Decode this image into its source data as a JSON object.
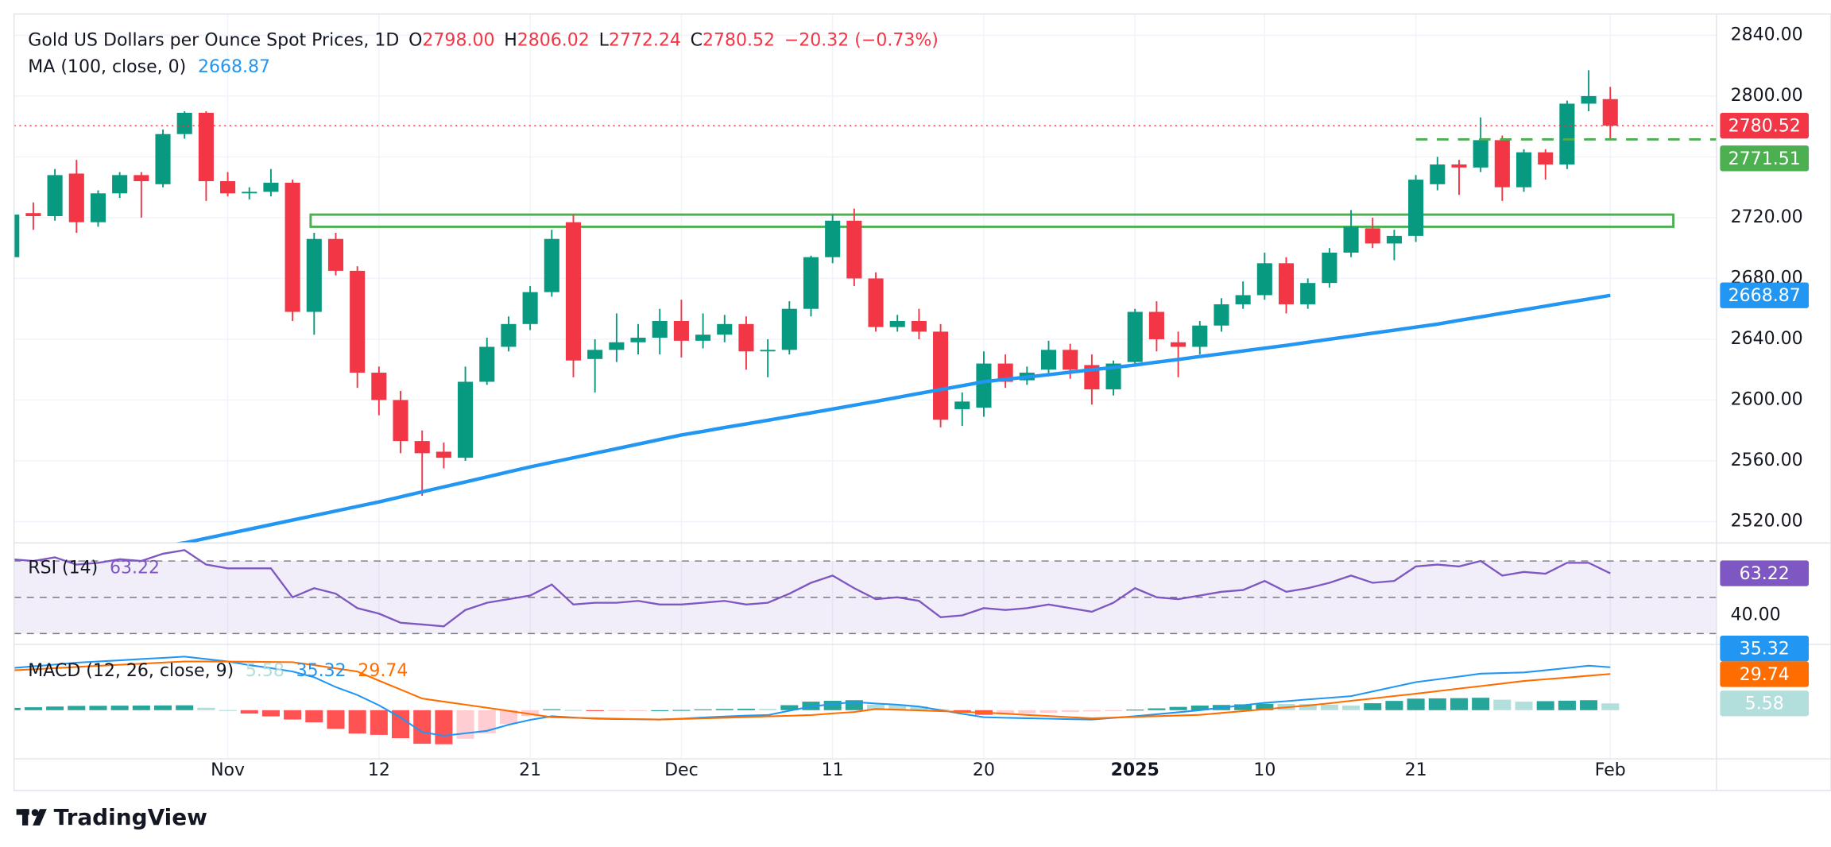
{
  "chart_data": [
    {
      "type": "candlestick",
      "title": "Gold US Dollars per Ounce Spot Prices, 1D",
      "ohlc_legend": [
        {
          "key": "O",
          "value": "2798.00"
        },
        {
          "key": "H",
          "value": "2806.02"
        },
        {
          "key": "L",
          "value": "2772.24"
        },
        {
          "key": "C",
          "value": "2780.52"
        }
      ],
      "change": "−20.32 (−0.73%)",
      "categories": [
        null,
        null,
        null,
        null,
        null,
        null,
        null,
        null,
        null,
        null,
        "Nov",
        null,
        null,
        null,
        null,
        null,
        null,
        "12",
        null,
        null,
        null,
        null,
        null,
        null,
        "21",
        null,
        null,
        null,
        null,
        null,
        null,
        "Dec",
        null,
        null,
        null,
        null,
        null,
        null,
        "11",
        null,
        null,
        null,
        null,
        null,
        null,
        "20",
        null,
        null,
        null,
        null,
        null,
        null,
        "2025",
        null,
        null,
        null,
        null,
        null,
        "10",
        null,
        null,
        null,
        null,
        null,
        null,
        "21",
        null,
        null,
        null,
        null,
        null,
        null,
        null,
        null,
        "Feb"
      ],
      "open": [
        2694,
        2723,
        2721,
        2749,
        2717,
        2736,
        2748,
        2742,
        2775,
        2789,
        2744,
        2736,
        2737,
        2743,
        2658,
        2706,
        2685,
        2618,
        2600,
        2573,
        2566,
        2562,
        2612,
        2635,
        2650,
        2671,
        2717,
        2627,
        2633,
        2638,
        2641,
        2652,
        2639,
        2643,
        2650,
        2632,
        2633,
        2660,
        2694,
        2718,
        2680,
        2648,
        2652,
        2645,
        2594,
        2595,
        2624,
        2613,
        2620,
        2633,
        2623,
        2607,
        2625,
        2658,
        2638,
        2635,
        2649,
        2663,
        2669,
        2690,
        2663,
        2677,
        2697,
        2713,
        2703,
        2708,
        2742,
        2755,
        2753,
        2771,
        2740,
        2763,
        2755,
        2795,
        2798
      ],
      "high": [
        2726,
        2730,
        2752,
        2758,
        2738,
        2750,
        2750,
        2778,
        2790,
        2790,
        2750,
        2740,
        2752,
        2745,
        2710,
        2710,
        2688,
        2622,
        2606,
        2580,
        2572,
        2622,
        2641,
        2655,
        2675,
        2712,
        2722,
        2640,
        2657,
        2650,
        2660,
        2666,
        2657,
        2656,
        2655,
        2640,
        2665,
        2695,
        2722,
        2726,
        2684,
        2656,
        2660,
        2650,
        2605,
        2632,
        2630,
        2622,
        2639,
        2637,
        2630,
        2626,
        2660,
        2665,
        2645,
        2652,
        2667,
        2678,
        2697,
        2694,
        2680,
        2700,
        2725,
        2720,
        2712,
        2748,
        2760,
        2758,
        2786,
        2774,
        2765,
        2765,
        2797,
        2817,
        2806.02
      ],
      "low": [
        2690,
        2712,
        2718,
        2710,
        2714,
        2733,
        2720,
        2740,
        2772,
        2731,
        2734,
        2732,
        2734,
        2652,
        2643,
        2682,
        2608,
        2590,
        2565,
        2537,
        2555,
        2560,
        2610,
        2632,
        2646,
        2668,
        2615,
        2605,
        2625,
        2630,
        2630,
        2628,
        2634,
        2638,
        2620,
        2615,
        2630,
        2655,
        2690,
        2675,
        2645,
        2645,
        2640,
        2582,
        2583,
        2589,
        2608,
        2610,
        2616,
        2614,
        2597,
        2603,
        2622,
        2632,
        2615,
        2630,
        2645,
        2660,
        2666,
        2657,
        2660,
        2674,
        2694,
        2700,
        2692,
        2704,
        2738,
        2735,
        2750,
        2731,
        2737,
        2745,
        2752,
        2790,
        2772.24
      ],
      "close": [
        2722,
        2721,
        2748,
        2717,
        2736,
        2748,
        2744,
        2775,
        2789,
        2744,
        2736,
        2737,
        2743,
        2658,
        2706,
        2685,
        2618,
        2600,
        2573,
        2565,
        2562,
        2612,
        2635,
        2650,
        2671,
        2706,
        2626,
        2633,
        2638,
        2641,
        2652,
        2639,
        2643,
        2650,
        2632,
        2633,
        2660,
        2694,
        2718,
        2680,
        2648,
        2652,
        2645,
        2587,
        2599,
        2624,
        2612,
        2618,
        2633,
        2620,
        2607,
        2624,
        2658,
        2640,
        2635,
        2649,
        2663,
        2669,
        2690,
        2663,
        2677,
        2697,
        2714,
        2703,
        2708,
        2745,
        2755,
        2753,
        2771,
        2740,
        2763,
        2755,
        2795,
        2800,
        2780.52
      ],
      "up_color": "#089981",
      "down_color": "#f23645",
      "ma": {
        "name": "MA (100, close, 0)",
        "color": "#2196f3",
        "last_label": "2668.87",
        "values": [
          2490,
          2492,
          2494,
          2496,
          2498,
          2500,
          2502,
          2504,
          2506,
          2509,
          2512,
          2515,
          2518,
          2521,
          2524,
          2527,
          2530,
          2533,
          2536.3,
          2539.6,
          2542.9,
          2546.1,
          2549.4,
          2552.7,
          2556,
          2559,
          2562,
          2565,
          2568,
          2571,
          2574,
          2577,
          2579.4,
          2581.9,
          2584.3,
          2586.7,
          2589.1,
          2591.6,
          2594,
          2596.6,
          2599.1,
          2601.7,
          2604.3,
          2606.9,
          2609.4,
          2612,
          2613.6,
          2615.1,
          2616.7,
          2618.3,
          2619.9,
          2621.4,
          2623,
          2624.9,
          2626.7,
          2628.6,
          2630.4,
          2632.3,
          2634.1,
          2636,
          2638,
          2640,
          2642,
          2644,
          2646,
          2648,
          2650,
          2652.4,
          2654.7,
          2657.1,
          2659.4,
          2661.8,
          2664.2,
          2666.5,
          2668.87
        ]
      },
      "resistance_zone": [
        2714,
        2722
      ],
      "zone_color": "#4caf50",
      "price_lines": [
        {
          "value": 2780.52,
          "label": "2780.52",
          "color": "#f23645",
          "style": "dotted"
        },
        {
          "value": 2771.51,
          "label": "2771.51",
          "color": "#4caf50",
          "style": "dashed"
        }
      ],
      "ylim": [
        2506,
        2854
      ],
      "yticks": [
        {
          "value": 2520,
          "label": "2520.00"
        },
        {
          "value": 2560,
          "label": "2560.00"
        },
        {
          "value": 2600,
          "label": "2600.00"
        },
        {
          "value": 2640,
          "label": "2640.00"
        },
        {
          "value": 2680,
          "label": "2680.00"
        },
        {
          "value": 2720,
          "label": "2720.00"
        },
        {
          "value": 2760,
          "label": "2760.00"
        },
        {
          "value": 2800,
          "label": "2800.00"
        },
        {
          "value": 2840,
          "label": "2840.00"
        }
      ],
      "grid": true,
      "brand": "TradingView"
    },
    {
      "type": "line",
      "name": "RSI (14)",
      "color": "#7e57c2",
      "last_label": "63.22",
      "values": [
        71,
        70,
        72,
        68,
        69,
        71,
        70,
        74,
        76,
        68,
        66,
        66,
        66,
        50,
        55,
        52,
        44,
        41,
        36,
        35,
        34,
        43,
        47,
        49,
        51,
        57,
        46,
        47,
        47,
        48,
        46,
        46,
        47,
        48,
        46,
        47,
        52,
        58,
        62,
        55,
        49,
        50,
        48,
        39,
        40,
        44,
        43,
        44,
        46,
        44,
        42,
        47,
        55,
        50,
        49,
        51,
        53,
        54,
        59,
        53,
        55,
        58,
        62,
        58,
        59,
        67,
        68,
        67,
        70,
        62,
        64,
        63,
        69,
        69,
        63.22
      ],
      "bands": [
        70,
        50,
        30
      ],
      "ylim": [
        24,
        80
      ],
      "yticks": [
        {
          "value": 40,
          "label": "40.00"
        }
      ]
    },
    {
      "type": "macd",
      "name": "MACD (12, 26, close, 9)",
      "series": [
        {
          "name": "histogram",
          "label": "5.58",
          "color": "#26a69a",
          "values": [
            1.9,
            2.4,
            3,
            3.5,
            3.6,
            3.7,
            3.8,
            3.9,
            4,
            2,
            0.1,
            -2.8,
            -5.1,
            -7.7,
            -10,
            -15.3,
            -19.2,
            -20.3,
            -23,
            -27.6,
            -28,
            -23.5,
            -19,
            -11.4,
            -4.8,
            0.8,
            0.2,
            -0.4,
            -0.3,
            -0.1,
            0,
            0.2,
            0.7,
            1,
            1.2,
            1.1,
            4.1,
            7,
            7.7,
            8.2,
            4.5,
            4.1,
            3.2,
            0.8,
            -1.6,
            -3.8,
            -3.3,
            -2.7,
            -2.2,
            -1.6,
            -1,
            -0.2,
            0.5,
            1.5,
            2.7,
            3.8,
            4.3,
            4.8,
            5.2,
            5.1,
            5,
            4.5,
            3.8,
            5.7,
            7.6,
            9.5,
            9.7,
            9.9,
            10.2,
            8.6,
            7,
            7.4,
            7.8,
            8.2,
            5.58
          ]
        },
        {
          "name": "macd",
          "label": "35.32",
          "color": "#2196f3",
          "values": [
            34.6,
            36,
            37.5,
            39,
            40,
            41,
            42,
            43,
            44,
            42,
            40,
            37,
            34.5,
            31.7,
            27,
            19,
            12.5,
            4,
            -6,
            -18,
            -21,
            -19,
            -17,
            -12,
            -8,
            -5,
            -6,
            -7,
            -7.3,
            -7.5,
            -7.7,
            -7,
            -6,
            -5.2,
            -4.5,
            -4,
            -0.5,
            3,
            5,
            6.7,
            5.5,
            4.5,
            3,
            0,
            -3,
            -5.8,
            -6.2,
            -6.6,
            -7,
            -7.4,
            -7.7,
            -6.3,
            -5,
            -3.4,
            -1.7,
            0,
            2,
            4,
            6,
            7.4,
            8.8,
            10.2,
            11.5,
            15.3,
            19.2,
            23,
            25.3,
            27.6,
            30,
            30.5,
            31,
            32.8,
            34.6,
            36.5,
            35.32
          ]
        },
        {
          "name": "signal",
          "label": "29.74",
          "color": "#ff6d00",
          "values": [
            32.7,
            33.6,
            34.5,
            35.5,
            36.4,
            37.3,
            38.2,
            39.1,
            40,
            40,
            39.9,
            39.8,
            39.6,
            39.4,
            37,
            34.3,
            31.7,
            24.3,
            17,
            9.6,
            7,
            4.5,
            2,
            -0.6,
            -3.2,
            -5.8,
            -6.2,
            -6.6,
            -7,
            -7.4,
            -7.7,
            -7.2,
            -6.7,
            -6.2,
            -5.7,
            -5.1,
            -4.6,
            -4,
            -2.7,
            -1.5,
            1,
            0.4,
            -0.2,
            -0.8,
            -1.4,
            -2,
            -2.9,
            -3.9,
            -4.8,
            -5.8,
            -6.7,
            -6.1,
            -5.5,
            -4.9,
            -4.4,
            -3.8,
            -2.3,
            -0.8,
            0.8,
            2.3,
            3.8,
            5.7,
            7.7,
            9.6,
            11.6,
            13.5,
            15.6,
            17.7,
            19.8,
            21.9,
            24,
            25.4,
            26.8,
            28.3,
            29.74
          ]
        }
      ],
      "ylim": [
        -40,
        54
      ]
    }
  ]
}
